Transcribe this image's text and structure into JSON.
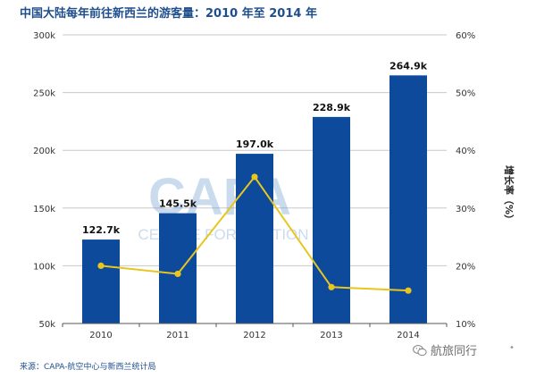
{
  "title": "中国大陆每年前往新西兰的游客量：2010 年至 2014 年",
  "chart_data": {
    "type": "bar",
    "categories": [
      "2010",
      "2011",
      "2012",
      "2013",
      "2014"
    ],
    "series": [
      {
        "kind": "bar",
        "axis": "left",
        "values": [
          122.7,
          145.5,
          197.0,
          228.9,
          264.9
        ],
        "labels": [
          "122.7k",
          "145.5k",
          "197.0k",
          "228.9k",
          "264.9k"
        ],
        "color": "#0e4a9c"
      },
      {
        "kind": "line",
        "axis": "right",
        "values": [
          20.0,
          18.6,
          35.4,
          16.3,
          15.7
        ],
        "color": "#e8c61e"
      }
    ],
    "y_left": {
      "min": 50,
      "max": 300,
      "ticks": [
        "50k",
        "100k",
        "150k",
        "200k",
        "250k",
        "300k"
      ]
    },
    "y_right": {
      "min": 10,
      "max": 60,
      "ticks": [
        "10%",
        "20%",
        "30%",
        "40%",
        "50%",
        "60%"
      ],
      "label": "增长率（%）"
    },
    "grid": true,
    "watermark": "CAPA",
    "watermark_sub": "CENTRE FOR AVIATION",
    "grid_color": "#c8c8c8"
  },
  "source": "来源：CAPA-航空中心与新西兰统计局",
  "brand": {
    "icon": "wechat-icon",
    "text": "航旅同行"
  }
}
